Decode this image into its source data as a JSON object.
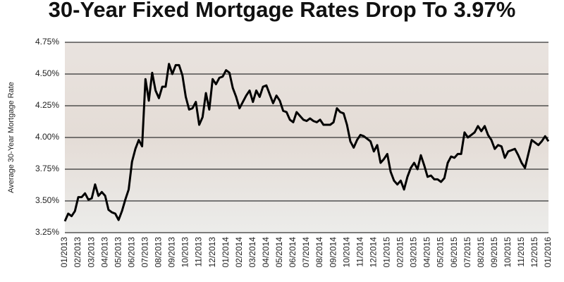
{
  "chart_data": {
    "type": "line",
    "title": "30-Year Fixed Mortgage Rates Drop To 3.97%",
    "y_label": "Average 30-Year Mortgage Rate",
    "categories": [
      "01/2013",
      null,
      null,
      null,
      "02/2013",
      null,
      null,
      null,
      "03/2013",
      null,
      null,
      null,
      "04/2013",
      null,
      null,
      null,
      "05/2013",
      null,
      null,
      null,
      "06/2013",
      null,
      null,
      null,
      "07/2013",
      null,
      null,
      null,
      "08/2013",
      null,
      null,
      null,
      "09/2013",
      null,
      null,
      null,
      "10/2013",
      null,
      null,
      null,
      "11/2013",
      null,
      null,
      null,
      "12/2013",
      null,
      null,
      null,
      "01/2014",
      null,
      null,
      null,
      "02/2014",
      null,
      null,
      null,
      "03/2014",
      null,
      null,
      null,
      "04/2014",
      null,
      null,
      null,
      "05/2014",
      null,
      null,
      null,
      "06/2014",
      null,
      null,
      null,
      "07/2014",
      null,
      null,
      null,
      "08/2014",
      null,
      null,
      null,
      "09/2014",
      null,
      null,
      null,
      "10/2014",
      null,
      null,
      null,
      "11/2014",
      null,
      null,
      null,
      "12/2014",
      null,
      null,
      null,
      "01/2015",
      null,
      null,
      null,
      "02/2015",
      null,
      null,
      null,
      "03/2015",
      null,
      null,
      null,
      "04/2015",
      null,
      null,
      null,
      "05/2015",
      null,
      null,
      null,
      "06/2015",
      null,
      null,
      null,
      "07/2015",
      null,
      null,
      null,
      "08/2015",
      null,
      null,
      null,
      "09/2015",
      null,
      null,
      null,
      "10/2015",
      null,
      null,
      null,
      "11/2015",
      null,
      null,
      null,
      "12/2015",
      null,
      null,
      null,
      "01/2016"
    ],
    "values": [
      3.34,
      3.4,
      3.38,
      3.42,
      3.53,
      3.53,
      3.56,
      3.51,
      3.52,
      3.63,
      3.54,
      3.57,
      3.54,
      3.43,
      3.41,
      3.4,
      3.35,
      3.42,
      3.51,
      3.59,
      3.81,
      3.91,
      3.98,
      3.93,
      4.46,
      4.29,
      4.51,
      4.37,
      4.31,
      4.4,
      4.4,
      4.58,
      4.5,
      4.57,
      4.57,
      4.49,
      4.32,
      4.22,
      4.23,
      4.28,
      4.1,
      4.16,
      4.35,
      4.22,
      4.46,
      4.42,
      4.47,
      4.48,
      4.53,
      4.51,
      4.39,
      4.32,
      4.23,
      4.28,
      4.33,
      4.37,
      4.28,
      4.37,
      4.32,
      4.4,
      4.41,
      4.34,
      4.27,
      4.33,
      4.29,
      4.21,
      4.2,
      4.14,
      4.12,
      4.2,
      4.17,
      4.14,
      4.13,
      4.15,
      4.13,
      4.12,
      4.14,
      4.1,
      4.1,
      4.1,
      4.12,
      4.23,
      4.2,
      4.19,
      4.1,
      3.97,
      3.92,
      3.98,
      4.02,
      4.01,
      3.99,
      3.97,
      3.89,
      3.94,
      3.8,
      3.83,
      3.87,
      3.73,
      3.66,
      3.63,
      3.66,
      3.59,
      3.69,
      3.76,
      3.8,
      3.75,
      3.86,
      3.78,
      3.69,
      3.7,
      3.67,
      3.67,
      3.65,
      3.68,
      3.8,
      3.85,
      3.84,
      3.87,
      3.87,
      4.04,
      4.0,
      4.02,
      4.04,
      4.09,
      4.05,
      4.09,
      4.02,
      3.98,
      3.91,
      3.94,
      3.93,
      3.84,
      3.89,
      3.9,
      3.91,
      3.86,
      3.8,
      3.76,
      3.87,
      3.98,
      3.96,
      3.94,
      3.97,
      4.01,
      3.97
    ],
    "color": "#000000",
    "ylim": [
      3.25,
      4.75
    ],
    "yticks": [
      {
        "value": 3.25,
        "label": "3.25%"
      },
      {
        "value": 3.5,
        "label": "3.50%"
      },
      {
        "value": 3.75,
        "label": "3.75%"
      },
      {
        "value": 4.0,
        "label": "4.00%"
      },
      {
        "value": 4.25,
        "label": "4.25%"
      },
      {
        "value": 4.5,
        "label": "4.50%"
      },
      {
        "value": 4.75,
        "label": "4.75%"
      }
    ],
    "grid": true
  }
}
